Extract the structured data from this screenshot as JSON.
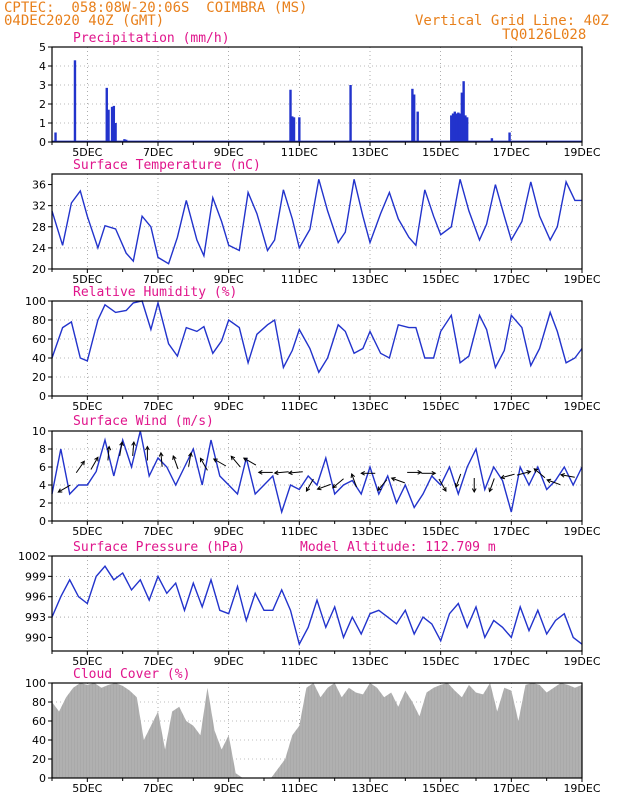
{
  "header": {
    "left_line1": "CPTEC:  058:08W-20:06S  COIMBRA (MS)",
    "left_line2": "04DEC2020 40Z (GMT)",
    "right_line1": "Vertical Grid Line: 40Z",
    "right_line2": "TQ0126L028"
  },
  "colors": {
    "header": "#e8801c",
    "title": "#e0158c",
    "series": "#2233cc",
    "cloud": "#a9a9a9",
    "grid": "#777777"
  },
  "chart_data": [
    {
      "type": "bar",
      "title": "Precipitation (mm/h)",
      "ylim": [
        0,
        5
      ],
      "yticks": [
        "0",
        "1",
        "2",
        "3",
        "4",
        "5"
      ],
      "xticks": [
        "5DEC",
        "7DEC",
        "9DEC",
        "11DEC",
        "13DEC",
        "15DEC",
        "17DEC",
        "19DEC"
      ],
      "x": [
        4.1,
        4.65,
        5.55,
        5.6,
        5.7,
        5.75,
        5.8,
        6.05,
        6.1,
        10.75,
        10.8,
        10.85,
        11.0,
        12.45,
        14.2,
        14.25,
        14.35,
        15.3,
        15.35,
        15.4,
        15.45,
        15.5,
        15.55,
        15.6,
        15.65,
        15.7,
        15.75,
        16.45,
        16.95
      ],
      "values": [
        0.5,
        4.3,
        2.85,
        1.7,
        1.85,
        1.9,
        1.0,
        0.15,
        0.12,
        2.75,
        1.35,
        1.3,
        1.3,
        3.0,
        2.8,
        2.5,
        1.6,
        1.4,
        1.5,
        1.6,
        1.5,
        1.55,
        1.5,
        2.6,
        3.2,
        1.4,
        1.3,
        0.2,
        0.5
      ]
    },
    {
      "type": "line",
      "title": "Surface Temperature (nC)",
      "ylim": [
        20,
        38
      ],
      "yticks": [
        "20",
        "24",
        "28",
        "32",
        "36"
      ],
      "xticks": [
        "5DEC",
        "7DEC",
        "9DEC",
        "11DEC",
        "13DEC",
        "15DEC",
        "17DEC",
        "19DEC"
      ],
      "series": [
        {
          "x": [
            4.0,
            4.3,
            4.55,
            4.8,
            5.0,
            5.3,
            5.5,
            5.8,
            6.1,
            6.3,
            6.55,
            6.8,
            7.0,
            7.3,
            7.55,
            7.8,
            8.1,
            8.3,
            8.55,
            8.8,
            9.0,
            9.3,
            9.55,
            9.8,
            10.1,
            10.3,
            10.55,
            10.8,
            11.0,
            11.3,
            11.55,
            11.8,
            12.1,
            12.3,
            12.55,
            12.8,
            13.0,
            13.3,
            13.55,
            13.8,
            14.1,
            14.3,
            14.55,
            14.8,
            15.0,
            15.3,
            15.55,
            15.8,
            16.1,
            16.3,
            16.55,
            16.8,
            17.0,
            17.3,
            17.55,
            17.8,
            18.1,
            18.3,
            18.55,
            18.8,
            19.0
          ],
          "values": [
            31.0,
            24.5,
            32.5,
            34.8,
            30.0,
            24.0,
            28.2,
            27.6,
            23.0,
            21.5,
            30.0,
            28.0,
            22.2,
            21.0,
            26.0,
            33.0,
            25.5,
            22.5,
            33.5,
            29.0,
            24.5,
            23.5,
            34.5,
            30.5,
            23.5,
            25.5,
            35.0,
            29.5,
            24.0,
            27.5,
            37.0,
            31.0,
            25.0,
            27.0,
            37.0,
            30.0,
            25.0,
            30.5,
            34.5,
            29.5,
            26.0,
            24.5,
            35.0,
            30.0,
            26.5,
            28.0,
            37.0,
            31.0,
            25.5,
            28.5,
            36.0,
            30.0,
            25.5,
            29.0,
            36.5,
            30.0,
            25.5,
            28.0,
            36.5,
            33.0,
            33.0
          ]
        }
      ]
    },
    {
      "type": "line",
      "title": "Relative Humidity (%)",
      "ylim": [
        0,
        100
      ],
      "yticks": [
        "0",
        "20",
        "40",
        "60",
        "80",
        "100"
      ],
      "xticks": [
        "5DEC",
        "7DEC",
        "9DEC",
        "11DEC",
        "13DEC",
        "15DEC",
        "17DEC",
        "19DEC"
      ],
      "series": [
        {
          "x": [
            4.0,
            4.3,
            4.55,
            4.8,
            5.0,
            5.3,
            5.5,
            5.8,
            6.1,
            6.3,
            6.55,
            6.8,
            7.0,
            7.3,
            7.55,
            7.8,
            8.1,
            8.3,
            8.55,
            8.8,
            9.0,
            9.3,
            9.55,
            9.8,
            10.1,
            10.3,
            10.55,
            10.8,
            11.0,
            11.3,
            11.55,
            11.8,
            12.1,
            12.3,
            12.55,
            12.8,
            13.0,
            13.3,
            13.55,
            13.8,
            14.1,
            14.3,
            14.55,
            14.8,
            15.0,
            15.3,
            15.55,
            15.8,
            16.1,
            16.3,
            16.55,
            16.8,
            17.0,
            17.3,
            17.55,
            17.8,
            18.1,
            18.3,
            18.55,
            18.8,
            19.0
          ],
          "values": [
            40.0,
            72.0,
            78.0,
            40.0,
            37.0,
            80.0,
            96.0,
            88.0,
            90.0,
            98.0,
            100.0,
            70.0,
            98.0,
            55.0,
            42.0,
            72.0,
            68.0,
            73.0,
            45.0,
            58.0,
            80.0,
            72.0,
            35.0,
            65.0,
            75.0,
            80.0,
            30.0,
            48.0,
            70.0,
            50.0,
            25.0,
            40.0,
            75.0,
            68.0,
            45.0,
            50.0,
            68.0,
            45.0,
            40.0,
            75.0,
            72.0,
            72.0,
            40.0,
            40.0,
            68.0,
            85.0,
            35.0,
            42.0,
            85.0,
            70.0,
            30.0,
            48.0,
            85.0,
            72.0,
            32.0,
            50.0,
            88.0,
            68.0,
            35.0,
            40.0,
            50.0
          ]
        }
      ]
    },
    {
      "type": "line",
      "title": "Surface Wind (m/s)",
      "ylim": [
        0,
        10
      ],
      "yticks": [
        "0",
        "2",
        "4",
        "6",
        "8",
        "10"
      ],
      "xticks": [
        "5DEC",
        "7DEC",
        "9DEC",
        "11DEC",
        "13DEC",
        "15DEC",
        "17DEC",
        "19DEC"
      ],
      "series": [
        {
          "x": [
            4.0,
            4.25,
            4.5,
            4.75,
            5.0,
            5.25,
            5.5,
            5.75,
            6.0,
            6.25,
            6.5,
            6.75,
            7.0,
            7.25,
            7.5,
            7.75,
            8.0,
            8.25,
            8.5,
            8.75,
            9.0,
            9.25,
            9.5,
            9.75,
            10.0,
            10.25,
            10.5,
            10.75,
            11.0,
            11.25,
            11.5,
            11.75,
            12.0,
            12.25,
            12.5,
            12.75,
            13.0,
            13.25,
            13.5,
            13.75,
            14.0,
            14.25,
            14.5,
            14.75,
            15.0,
            15.25,
            15.5,
            15.75,
            16.0,
            16.25,
            16.5,
            16.75,
            17.0,
            17.25,
            17.5,
            17.75,
            18.0,
            18.25,
            18.5,
            18.75,
            19.0
          ],
          "values": [
            3.0,
            8.0,
            3.0,
            4.0,
            4.0,
            5.5,
            9.0,
            5.0,
            9.0,
            6.0,
            10.0,
            5.0,
            7.0,
            6.0,
            4.0,
            6.0,
            8.0,
            4.0,
            9.0,
            5.0,
            4.0,
            3.0,
            7.0,
            3.0,
            4.0,
            5.0,
            1.0,
            4.0,
            3.5,
            5.0,
            4.0,
            7.0,
            3.0,
            4.0,
            4.5,
            3.0,
            6.0,
            3.0,
            5.0,
            2.0,
            4.0,
            1.5,
            3.0,
            5.0,
            4.0,
            6.0,
            3.0,
            6.0,
            8.0,
            3.5,
            6.0,
            4.5,
            1.0,
            6.0,
            4.0,
            6.0,
            3.5,
            4.5,
            6.0,
            4.0,
            6.0
          ]
        }
      ],
      "wind_arrows": [
        {
          "x": 4.35,
          "y": 3.6,
          "dir_deg": 210
        },
        {
          "x": 4.8,
          "y": 6.0,
          "dir_deg": 55
        },
        {
          "x": 5.2,
          "y": 6.4,
          "dir_deg": 60
        },
        {
          "x": 5.6,
          "y": 7.5,
          "dir_deg": 85
        },
        {
          "x": 5.95,
          "y": 8.0,
          "dir_deg": 80
        },
        {
          "x": 6.3,
          "y": 8.0,
          "dir_deg": 85
        },
        {
          "x": 6.7,
          "y": 7.5,
          "dir_deg": 90
        },
        {
          "x": 7.1,
          "y": 6.8,
          "dir_deg": 95
        },
        {
          "x": 7.5,
          "y": 6.5,
          "dir_deg": 110
        },
        {
          "x": 7.9,
          "y": 6.8,
          "dir_deg": 80
        },
        {
          "x": 8.3,
          "y": 6.3,
          "dir_deg": 120
        },
        {
          "x": 8.75,
          "y": 6.5,
          "dir_deg": 150
        },
        {
          "x": 9.2,
          "y": 6.6,
          "dir_deg": 130
        },
        {
          "x": 9.6,
          "y": 6.6,
          "dir_deg": 150
        },
        {
          "x": 10.05,
          "y": 5.4,
          "dir_deg": 180
        },
        {
          "x": 10.5,
          "y": 5.4,
          "dir_deg": 185
        },
        {
          "x": 10.9,
          "y": 5.4,
          "dir_deg": 185
        },
        {
          "x": 11.3,
          "y": 4.0,
          "dir_deg": 240
        },
        {
          "x": 11.7,
          "y": 3.8,
          "dir_deg": 200
        },
        {
          "x": 12.1,
          "y": 4.2,
          "dir_deg": 220
        },
        {
          "x": 12.55,
          "y": 4.5,
          "dir_deg": 110
        },
        {
          "x": 12.95,
          "y": 5.3,
          "dir_deg": 180
        },
        {
          "x": 13.35,
          "y": 4.0,
          "dir_deg": 230
        },
        {
          "x": 13.8,
          "y": 4.5,
          "dir_deg": 160
        },
        {
          "x": 14.25,
          "y": 5.4,
          "dir_deg": 0
        },
        {
          "x": 14.65,
          "y": 5.3,
          "dir_deg": 0
        },
        {
          "x": 15.05,
          "y": 4.0,
          "dir_deg": 300
        },
        {
          "x": 15.5,
          "y": 4.5,
          "dir_deg": 250
        },
        {
          "x": 15.95,
          "y": 4.0,
          "dir_deg": 270
        },
        {
          "x": 16.45,
          "y": 4.0,
          "dir_deg": 250
        },
        {
          "x": 16.9,
          "y": 5.0,
          "dir_deg": 195
        },
        {
          "x": 17.35,
          "y": 5.3,
          "dir_deg": 15
        },
        {
          "x": 17.8,
          "y": 5.3,
          "dir_deg": 140
        },
        {
          "x": 18.2,
          "y": 4.3,
          "dir_deg": 160
        },
        {
          "x": 18.6,
          "y": 5.0,
          "dir_deg": 170
        }
      ]
    },
    {
      "type": "line",
      "title": "Surface Pressure (hPa)",
      "annotation": "Model Altitude: 112.709 m",
      "ylim": [
        988,
        1002
      ],
      "yticks": [
        "990",
        "993",
        "996",
        "999",
        "1002"
      ],
      "xticks": [
        "5DEC",
        "7DEC",
        "9DEC",
        "11DEC",
        "13DEC",
        "15DEC",
        "17DEC",
        "19DEC"
      ],
      "series": [
        {
          "x": [
            4.0,
            4.25,
            4.5,
            4.75,
            5.0,
            5.25,
            5.5,
            5.75,
            6.0,
            6.25,
            6.5,
            6.75,
            7.0,
            7.25,
            7.5,
            7.75,
            8.0,
            8.25,
            8.5,
            8.75,
            9.0,
            9.25,
            9.5,
            9.75,
            10.0,
            10.25,
            10.5,
            10.75,
            11.0,
            11.25,
            11.5,
            11.75,
            12.0,
            12.25,
            12.5,
            12.75,
            13.0,
            13.25,
            13.5,
            13.75,
            14.0,
            14.25,
            14.5,
            14.75,
            15.0,
            15.25,
            15.5,
            15.75,
            16.0,
            16.25,
            16.5,
            16.75,
            17.0,
            17.25,
            17.5,
            17.75,
            18.0,
            18.25,
            18.5,
            18.75,
            19.0
          ],
          "values": [
            993.0,
            996.0,
            998.5,
            996.0,
            995.0,
            999.0,
            1000.5,
            998.5,
            999.5,
            997.0,
            998.5,
            995.5,
            999.0,
            996.5,
            998.0,
            994.0,
            998.0,
            994.5,
            998.5,
            994.0,
            993.5,
            997.5,
            992.5,
            996.5,
            994.0,
            994.0,
            997.0,
            994.0,
            989.0,
            991.5,
            995.5,
            991.5,
            994.5,
            990.0,
            993.0,
            990.5,
            993.5,
            994.0,
            993.0,
            992.0,
            994.0,
            990.5,
            993.0,
            992.0,
            989.5,
            993.5,
            995.0,
            991.5,
            994.5,
            990.0,
            992.5,
            991.5,
            990.0,
            994.5,
            991.0,
            994.0,
            990.5,
            992.5,
            993.5,
            990.0,
            989.0
          ]
        }
      ]
    },
    {
      "type": "area",
      "title": "Cloud Cover (%)",
      "ylim": [
        0,
        100
      ],
      "yticks": [
        "0",
        "20",
        "40",
        "60",
        "80",
        "100"
      ],
      "xticks": [
        "5DEC",
        "7DEC",
        "9DEC",
        "11DEC",
        "13DEC",
        "15DEC",
        "17DEC",
        "19DEC"
      ],
      "series": [
        {
          "x": [
            4.0,
            4.2,
            4.4,
            4.6,
            4.8,
            5.0,
            5.2,
            5.4,
            5.6,
            5.8,
            6.0,
            6.2,
            6.4,
            6.6,
            6.8,
            7.0,
            7.2,
            7.4,
            7.6,
            7.8,
            8.0,
            8.2,
            8.4,
            8.6,
            8.8,
            9.0,
            9.2,
            9.4,
            9.6,
            9.8,
            10.0,
            10.2,
            10.4,
            10.6,
            10.8,
            11.0,
            11.2,
            11.4,
            11.6,
            11.8,
            12.0,
            12.2,
            12.4,
            12.6,
            12.8,
            13.0,
            13.2,
            13.4,
            13.6,
            13.8,
            14.0,
            14.2,
            14.4,
            14.6,
            14.8,
            15.0,
            15.2,
            15.4,
            15.6,
            15.8,
            16.0,
            16.2,
            16.4,
            16.6,
            16.8,
            17.0,
            17.2,
            17.4,
            17.6,
            17.8,
            18.0,
            18.2,
            18.4,
            18.6,
            18.8,
            19.0
          ],
          "values": [
            80,
            70,
            85,
            95,
            100,
            98,
            100,
            95,
            98,
            100,
            97,
            92,
            85,
            40,
            55,
            70,
            30,
            70,
            75,
            60,
            55,
            45,
            95,
            50,
            30,
            45,
            5,
            0,
            0,
            0,
            0,
            0,
            10,
            20,
            45,
            55,
            95,
            100,
            85,
            95,
            100,
            85,
            95,
            90,
            88,
            100,
            95,
            85,
            90,
            75,
            92,
            80,
            65,
            90,
            95,
            98,
            100,
            92,
            85,
            98,
            90,
            88,
            100,
            70,
            95,
            92,
            60,
            98,
            100,
            98,
            90,
            95,
            100,
            98,
            95,
            98
          ]
        }
      ]
    }
  ]
}
